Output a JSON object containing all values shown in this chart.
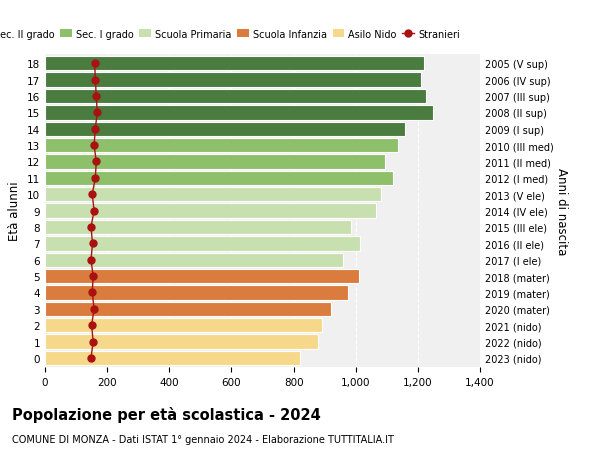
{
  "ages": [
    0,
    1,
    2,
    3,
    4,
    5,
    6,
    7,
    8,
    9,
    10,
    11,
    12,
    13,
    14,
    15,
    16,
    17,
    18
  ],
  "right_labels": [
    "2023 (nido)",
    "2022 (nido)",
    "2021 (nido)",
    "2020 (mater)",
    "2019 (mater)",
    "2018 (mater)",
    "2017 (I ele)",
    "2016 (II ele)",
    "2015 (III ele)",
    "2014 (IV ele)",
    "2013 (V ele)",
    "2012 (I med)",
    "2011 (II med)",
    "2010 (III med)",
    "2009 (I sup)",
    "2008 (II sup)",
    "2007 (III sup)",
    "2006 (IV sup)",
    "2005 (V sup)"
  ],
  "bar_values": [
    820,
    880,
    890,
    920,
    975,
    1010,
    960,
    1015,
    985,
    1065,
    1080,
    1120,
    1095,
    1135,
    1160,
    1250,
    1225,
    1210,
    1220
  ],
  "stranieri_values": [
    148,
    155,
    150,
    158,
    152,
    155,
    148,
    153,
    148,
    158,
    152,
    162,
    165,
    158,
    162,
    168,
    165,
    162,
    160
  ],
  "bar_colors_by_age": {
    "0": "#F5D88A",
    "1": "#F5D88A",
    "2": "#F5D88A",
    "3": "#D97C3E",
    "4": "#D97C3E",
    "5": "#D97C3E",
    "6": "#C8DFB0",
    "7": "#C8DFB0",
    "8": "#C8DFB0",
    "9": "#C8DFB0",
    "10": "#C8DFB0",
    "11": "#8EBF6A",
    "12": "#8EBF6A",
    "13": "#8EBF6A",
    "14": "#4A7C3F",
    "15": "#4A7C3F",
    "16": "#4A7C3F",
    "17": "#4A7C3F",
    "18": "#4A7C3F"
  },
  "legend_labels": [
    "Sec. II grado",
    "Sec. I grado",
    "Scuola Primaria",
    "Scuola Infanzia",
    "Asilo Nido",
    "Stranieri"
  ],
  "legend_colors": [
    "#4A7C3F",
    "#8EBF6A",
    "#C8DFB0",
    "#D97C3E",
    "#F5D88A",
    "#AA1111"
  ],
  "title": "Popolazione per età scolastica - 2024",
  "subtitle": "COMUNE DI MONZA - Dati ISTAT 1° gennaio 2024 - Elaborazione TUTTITALIA.IT",
  "ylabel_left": "Età alunni",
  "ylabel_right": "Anni di nascita",
  "xlim": [
    0,
    1400
  ],
  "xticks": [
    0,
    200,
    400,
    600,
    800,
    1000,
    1200,
    1400
  ],
  "background_color": "#FFFFFF",
  "plot_bg_color": "#F0F0F0",
  "stranieri_color": "#AA1111",
  "stranieri_marker": "o",
  "stranieri_markersize": 5
}
